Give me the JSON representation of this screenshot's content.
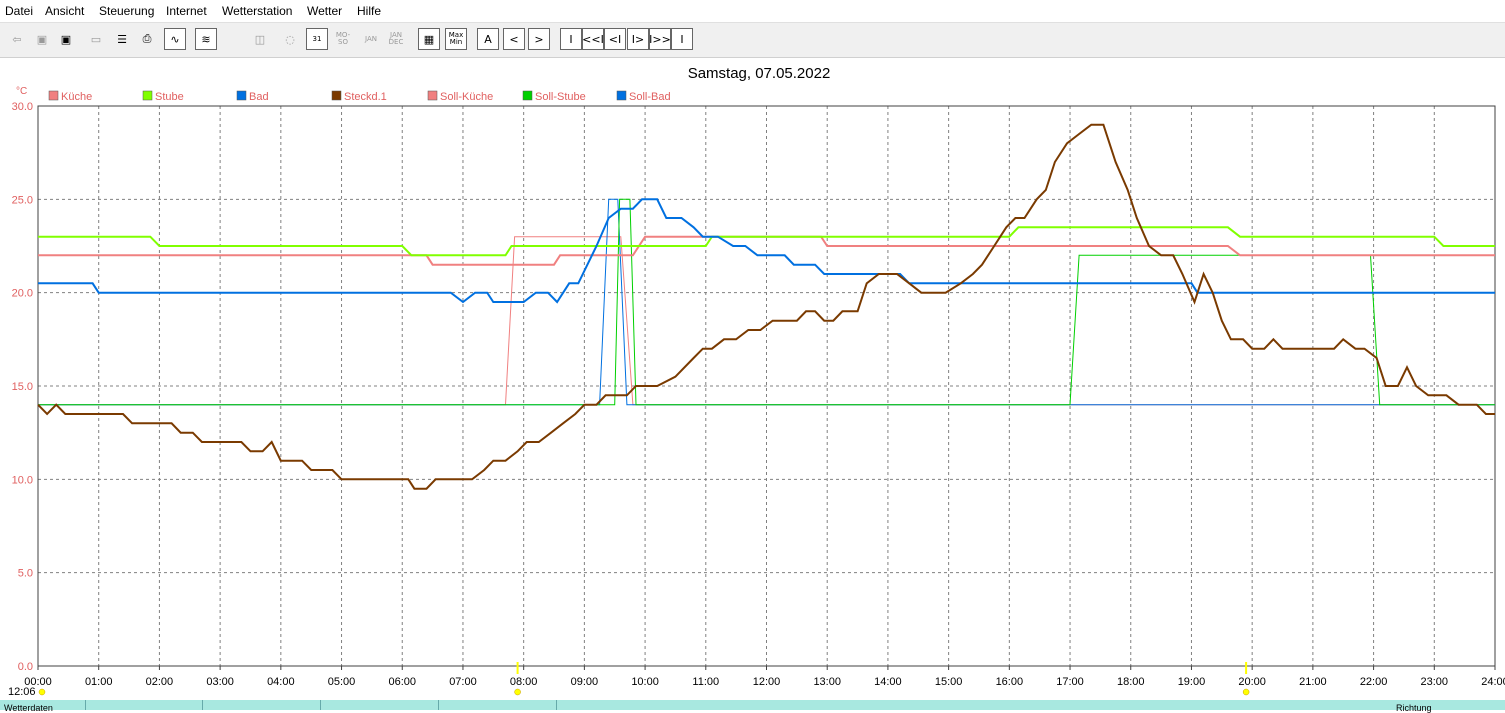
{
  "menu": [
    "Datei",
    "Ansicht",
    "Steuerung",
    "Internet",
    "Wetterstation",
    "Wetter",
    "Hilfe"
  ],
  "toolbar": {
    "icons": [
      "back-icon",
      "save-icon",
      "save-disk-icon",
      "window-icon",
      "notepad-icon",
      "print-icon",
      "chart-line-icon",
      "chart-compare-icon",
      "day-history-icon",
      "reset-icon",
      "day-icon",
      "week-icon",
      "month-icon",
      "year-icon",
      "table-icon",
      "min-max-icon",
      "auto-icon",
      "prev-icon",
      "next-icon",
      "first-icon",
      "back-fast-icon",
      "back-step-icon",
      "forward-step-icon",
      "forward-fast-icon",
      "last-icon"
    ],
    "day_label": "31",
    "week_label": "MO-SO",
    "month_label": "JAN",
    "year_label": "JAN DEC",
    "minmax_label": "Max Min",
    "auto_label": "A",
    "prev_label": "<",
    "next_label": ">",
    "first_label": "I",
    "back_fast_label": "<<I",
    "back_step_label": "<I",
    "fwd_step_label": "I>",
    "fwd_fast_label": "I>>",
    "last_label": "I"
  },
  "status": {
    "time": "12:06",
    "left_label": "Wetterdaten",
    "right_label": "Richtung"
  },
  "colors": {
    "kueche": "#f08080",
    "stube": "#80ff00",
    "bad": "#0070e0",
    "steckd": "#7a3a00",
    "soll_kueche": "#f08080",
    "soll_stube": "#00d000",
    "soll_bad": "#0070e0",
    "axis_label": "#e06060",
    "grid": "#808080",
    "marker": "#ffff00"
  },
  "chart_data": {
    "type": "line",
    "title": "Samstag, 07.05.2022",
    "ylabel": "°C",
    "xlabel": "",
    "xlim": [
      0,
      24
    ],
    "ylim": [
      0,
      30
    ],
    "grid": true,
    "legend_position": "top-left",
    "x_ticks": [
      "00:00",
      "01:00",
      "02:00",
      "03:00",
      "04:00",
      "05:00",
      "06:00",
      "07:00",
      "08:00",
      "09:00",
      "10:00",
      "11:00",
      "12:00",
      "13:00",
      "14:00",
      "15:00",
      "16:00",
      "17:00",
      "18:00",
      "19:00",
      "20:00",
      "21:00",
      "22:00",
      "23:00",
      "24:00"
    ],
    "y_ticks": [
      "0.0",
      "5.0",
      "10.0",
      "15.0",
      "20.0",
      "25.0",
      "30.0"
    ],
    "markers_x": [
      7.9,
      19.9
    ],
    "series": [
      {
        "name": "Küche",
        "key": "kueche",
        "width": 2,
        "points": [
          [
            0,
            22
          ],
          [
            6.4,
            22
          ],
          [
            6.5,
            21.5
          ],
          [
            8.5,
            21.5
          ],
          [
            8.6,
            22
          ],
          [
            9.8,
            22
          ],
          [
            10.0,
            23
          ],
          [
            12.9,
            23
          ],
          [
            13.0,
            22.5
          ],
          [
            19.6,
            22.5
          ],
          [
            19.8,
            22
          ],
          [
            24,
            22
          ]
        ]
      },
      {
        "name": "Stube",
        "key": "stube",
        "width": 2,
        "points": [
          [
            0,
            23
          ],
          [
            1.85,
            23
          ],
          [
            2.0,
            22.5
          ],
          [
            6.0,
            22.5
          ],
          [
            6.15,
            22
          ],
          [
            7.7,
            22
          ],
          [
            7.8,
            22.5
          ],
          [
            11.0,
            22.5
          ],
          [
            11.1,
            23
          ],
          [
            16.0,
            23
          ],
          [
            16.15,
            23.5
          ],
          [
            19.6,
            23.5
          ],
          [
            19.8,
            23
          ],
          [
            23.0,
            23
          ],
          [
            23.15,
            22.5
          ],
          [
            24,
            22.5
          ]
        ]
      },
      {
        "name": "Bad",
        "key": "bad",
        "width": 2,
        "points": [
          [
            0,
            20.5
          ],
          [
            0.9,
            20.5
          ],
          [
            1.0,
            20
          ],
          [
            6.8,
            20
          ],
          [
            7.0,
            19.5
          ],
          [
            7.2,
            20
          ],
          [
            7.4,
            20
          ],
          [
            7.5,
            19.5
          ],
          [
            8.0,
            19.5
          ],
          [
            8.2,
            20
          ],
          [
            8.4,
            20
          ],
          [
            8.55,
            19.5
          ],
          [
            8.75,
            20.5
          ],
          [
            8.9,
            20.5
          ],
          [
            9.2,
            22.5
          ],
          [
            9.4,
            24
          ],
          [
            9.6,
            24.5
          ],
          [
            9.8,
            24.5
          ],
          [
            9.95,
            25
          ],
          [
            10.2,
            25
          ],
          [
            10.35,
            24
          ],
          [
            10.6,
            24
          ],
          [
            10.8,
            23.5
          ],
          [
            10.95,
            23
          ],
          [
            11.2,
            23
          ],
          [
            11.45,
            22.5
          ],
          [
            11.65,
            22.5
          ],
          [
            11.85,
            22
          ],
          [
            12.3,
            22
          ],
          [
            12.45,
            21.5
          ],
          [
            12.8,
            21.5
          ],
          [
            12.95,
            21
          ],
          [
            14.2,
            21
          ],
          [
            14.35,
            20.5
          ],
          [
            19.0,
            20.5
          ],
          [
            19.1,
            20
          ],
          [
            24,
            20
          ]
        ]
      },
      {
        "name": "Steckd.1",
        "key": "steckd",
        "width": 2,
        "points": [
          [
            0,
            14
          ],
          [
            0.15,
            13.5
          ],
          [
            0.3,
            14
          ],
          [
            0.45,
            13.5
          ],
          [
            1.4,
            13.5
          ],
          [
            1.55,
            13
          ],
          [
            2.2,
            13
          ],
          [
            2.35,
            12.5
          ],
          [
            2.55,
            12.5
          ],
          [
            2.7,
            12
          ],
          [
            3.35,
            12
          ],
          [
            3.5,
            11.5
          ],
          [
            3.7,
            11.5
          ],
          [
            3.85,
            12
          ],
          [
            4.0,
            11
          ],
          [
            4.35,
            11
          ],
          [
            4.5,
            10.5
          ],
          [
            4.85,
            10.5
          ],
          [
            5.0,
            10
          ],
          [
            6.1,
            10
          ],
          [
            6.2,
            9.5
          ],
          [
            6.4,
            9.5
          ],
          [
            6.55,
            10
          ],
          [
            7.15,
            10
          ],
          [
            7.35,
            10.5
          ],
          [
            7.5,
            11
          ],
          [
            7.7,
            11
          ],
          [
            7.9,
            11.5
          ],
          [
            8.05,
            12
          ],
          [
            8.25,
            12
          ],
          [
            8.45,
            12.5
          ],
          [
            8.65,
            13
          ],
          [
            8.85,
            13.5
          ],
          [
            9.0,
            14
          ],
          [
            9.2,
            14
          ],
          [
            9.35,
            14.5
          ],
          [
            9.7,
            14.5
          ],
          [
            9.85,
            15
          ],
          [
            10.2,
            15
          ],
          [
            10.5,
            15.5
          ],
          [
            10.8,
            16.5
          ],
          [
            10.95,
            17
          ],
          [
            11.1,
            17
          ],
          [
            11.3,
            17.5
          ],
          [
            11.5,
            17.5
          ],
          [
            11.7,
            18
          ],
          [
            11.9,
            18
          ],
          [
            12.1,
            18.5
          ],
          [
            12.5,
            18.5
          ],
          [
            12.65,
            19
          ],
          [
            12.8,
            19
          ],
          [
            12.95,
            18.5
          ],
          [
            13.1,
            18.5
          ],
          [
            13.25,
            19
          ],
          [
            13.5,
            19
          ],
          [
            13.65,
            20.5
          ],
          [
            13.85,
            21
          ],
          [
            14.15,
            21
          ],
          [
            14.35,
            20.5
          ],
          [
            14.55,
            20
          ],
          [
            14.95,
            20
          ],
          [
            15.2,
            20.5
          ],
          [
            15.4,
            21
          ],
          [
            15.55,
            21.5
          ],
          [
            15.75,
            22.5
          ],
          [
            15.95,
            23.5
          ],
          [
            16.1,
            24
          ],
          [
            16.25,
            24
          ],
          [
            16.45,
            25
          ],
          [
            16.6,
            25.5
          ],
          [
            16.75,
            27
          ],
          [
            16.95,
            28
          ],
          [
            17.15,
            28.5
          ],
          [
            17.35,
            29
          ],
          [
            17.55,
            29
          ],
          [
            17.75,
            27
          ],
          [
            17.95,
            25.5
          ],
          [
            18.1,
            24
          ],
          [
            18.3,
            22.5
          ],
          [
            18.5,
            22
          ],
          [
            18.7,
            22
          ],
          [
            18.85,
            21
          ],
          [
            19.05,
            19.5
          ],
          [
            19.2,
            21
          ],
          [
            19.35,
            20
          ],
          [
            19.5,
            18.5
          ],
          [
            19.65,
            17.5
          ],
          [
            19.85,
            17.5
          ],
          [
            20.0,
            17
          ],
          [
            20.2,
            17
          ],
          [
            20.35,
            17.5
          ],
          [
            20.5,
            17
          ],
          [
            21.35,
            17
          ],
          [
            21.5,
            17.5
          ],
          [
            21.7,
            17
          ],
          [
            21.85,
            17
          ],
          [
            22.05,
            16.5
          ],
          [
            22.2,
            15
          ],
          [
            22.4,
            15
          ],
          [
            22.55,
            16
          ],
          [
            22.7,
            15
          ],
          [
            22.9,
            14.5
          ],
          [
            23.2,
            14.5
          ],
          [
            23.4,
            14
          ],
          [
            23.7,
            14
          ],
          [
            23.85,
            13.5
          ],
          [
            24,
            13.5
          ]
        ]
      },
      {
        "name": "Soll-Küche",
        "key": "soll_kueche",
        "width": 1,
        "points": [
          [
            0,
            14
          ],
          [
            7.7,
            14
          ],
          [
            7.85,
            23
          ],
          [
            9.6,
            23
          ],
          [
            9.8,
            14
          ],
          [
            24,
            14
          ]
        ]
      },
      {
        "name": "Soll-Stube",
        "key": "soll_stube",
        "width": 1,
        "points": [
          [
            0,
            14
          ],
          [
            9.5,
            14
          ],
          [
            9.58,
            25
          ],
          [
            9.75,
            25
          ],
          [
            9.85,
            14
          ],
          [
            17.0,
            14
          ],
          [
            17.15,
            22
          ],
          [
            21.95,
            22
          ],
          [
            22.1,
            14
          ],
          [
            24,
            14
          ]
        ]
      },
      {
        "name": "Soll-Bad",
        "key": "soll_bad",
        "width": 1,
        "points": [
          [
            0,
            14
          ],
          [
            9.25,
            14
          ],
          [
            9.4,
            25
          ],
          [
            9.55,
            25
          ],
          [
            9.7,
            14
          ],
          [
            24,
            14
          ]
        ]
      }
    ]
  }
}
